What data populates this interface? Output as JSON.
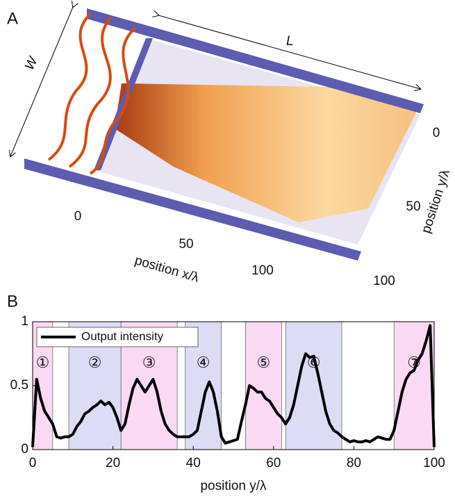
{
  "panel_a": {
    "label": "A",
    "width_label": "W",
    "length_label": "L",
    "x_axis": {
      "label": "position x/λ",
      "ticks": [
        "0",
        "50",
        "100"
      ]
    },
    "y_axis": {
      "label": "position y/λ",
      "ticks": [
        "0",
        "50",
        "100"
      ]
    }
  },
  "chart_data": {
    "type": "line",
    "panel_label": "B",
    "xlabel": "position y/λ",
    "xlim": [
      0,
      100
    ],
    "ylim": [
      0,
      1
    ],
    "xticks": [
      0,
      20,
      40,
      60,
      80,
      100
    ],
    "yticks": [
      0,
      0.5,
      1
    ],
    "legend": "upper left",
    "regions": [
      {
        "label": "①",
        "start": 0,
        "end": 5,
        "color": "#f9d9f3"
      },
      {
        "label": "②",
        "start": 9,
        "end": 22,
        "color": "#dcdcf5"
      },
      {
        "label": "③",
        "start": 22,
        "end": 36,
        "color": "#f9d9f3"
      },
      {
        "label": "④",
        "start": 38,
        "end": 47,
        "color": "#dcdcf5"
      },
      {
        "label": "⑤",
        "start": 53,
        "end": 62,
        "color": "#f9d9f3"
      },
      {
        "label": "⑥",
        "start": 63,
        "end": 77,
        "color": "#dcdcf5"
      },
      {
        "label": "⑦",
        "start": 90,
        "end": 100,
        "color": "#f9d9f3"
      }
    ],
    "x": [
      0,
      1,
      2,
      3,
      4,
      5,
      6,
      7,
      8,
      9,
      10,
      11,
      12,
      13,
      14,
      15,
      16,
      17,
      18,
      19,
      20,
      21,
      22,
      23,
      24,
      25,
      26,
      27,
      28,
      29,
      30,
      31,
      32,
      33,
      34,
      35,
      36,
      37,
      38,
      39,
      40,
      41,
      42,
      43,
      44,
      45,
      46,
      47,
      48,
      49,
      50,
      51,
      52,
      53,
      54,
      55,
      56,
      57,
      58,
      59,
      60,
      61,
      62,
      63,
      64,
      65,
      66,
      67,
      68,
      69,
      70,
      71,
      72,
      73,
      74,
      75,
      76,
      77,
      78,
      79,
      80,
      81,
      82,
      83,
      84,
      85,
      86,
      87,
      88,
      89,
      90,
      91,
      92,
      93,
      94,
      95,
      96,
      97,
      98,
      99,
      100
    ],
    "series": [
      {
        "name": "Output intensity",
        "color": "#000000",
        "values": [
          0.02,
          0.55,
          0.4,
          0.3,
          0.25,
          0.2,
          0.1,
          0.09,
          0.1,
          0.1,
          0.12,
          0.18,
          0.22,
          0.28,
          0.3,
          0.33,
          0.35,
          0.38,
          0.35,
          0.37,
          0.33,
          0.25,
          0.15,
          0.2,
          0.35,
          0.48,
          0.55,
          0.5,
          0.45,
          0.5,
          0.55,
          0.45,
          0.3,
          0.2,
          0.15,
          0.12,
          0.1,
          0.1,
          0.1,
          0.1,
          0.12,
          0.15,
          0.3,
          0.45,
          0.53,
          0.45,
          0.3,
          0.1,
          0.05,
          0.06,
          0.07,
          0.08,
          0.22,
          0.35,
          0.5,
          0.48,
          0.45,
          0.45,
          0.4,
          0.38,
          0.33,
          0.28,
          0.25,
          0.2,
          0.25,
          0.35,
          0.5,
          0.65,
          0.75,
          0.72,
          0.73,
          0.6,
          0.45,
          0.3,
          0.2,
          0.15,
          0.13,
          0.1,
          0.08,
          0.06,
          0.07,
          0.06,
          0.06,
          0.07,
          0.06,
          0.08,
          0.1,
          0.09,
          0.08,
          0.08,
          0.15,
          0.3,
          0.45,
          0.55,
          0.6,
          0.62,
          0.7,
          0.75,
          0.85,
          0.97,
          0.02
        ]
      }
    ]
  }
}
